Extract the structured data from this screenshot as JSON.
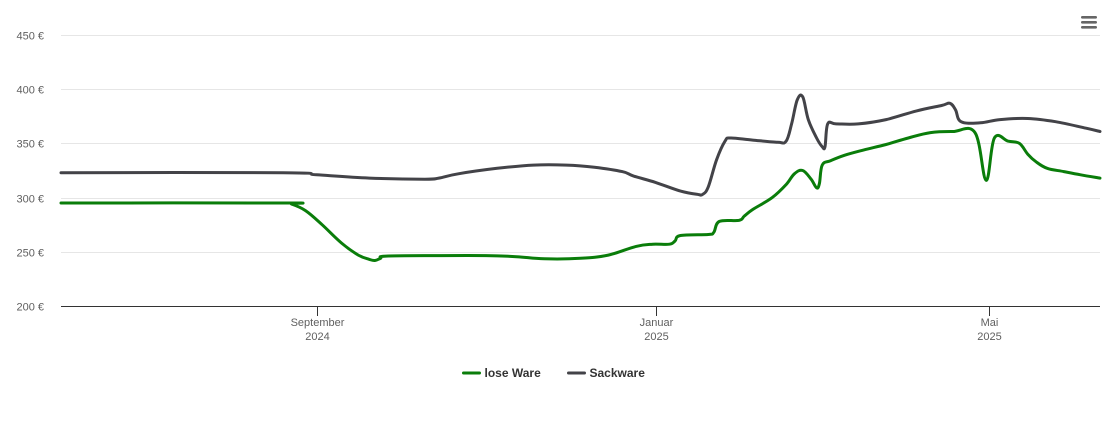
{
  "menu": {
    "icon": "hamburger-menu-icon"
  },
  "chart_data": {
    "type": "line",
    "title": "",
    "xlabel": "",
    "ylabel": "",
    "ylim": [
      200,
      450
    ],
    "yticks": [
      200,
      250,
      300,
      350,
      400,
      450
    ],
    "ytick_labels": [
      "200 €",
      "250 €",
      "300 €",
      "350 €",
      "400 €",
      "450 €"
    ],
    "xlim": [
      "2024-06-01",
      "2025-06-10"
    ],
    "xticks": [
      {
        "date": "2024-09-01",
        "month": "September",
        "year": "2024"
      },
      {
        "date": "2025-01-01",
        "month": "Januar",
        "year": "2025"
      },
      {
        "date": "2025-05-01",
        "month": "Mai",
        "year": "2025"
      }
    ],
    "grid": true,
    "legend": "bottom-center",
    "series": [
      {
        "name": "lose Ware",
        "color": "#0a7d0a",
        "points": [
          [
            "2024-06-01",
            295
          ],
          [
            "2024-08-20",
            295
          ],
          [
            "2024-08-23",
            294
          ],
          [
            "2024-08-28",
            288
          ],
          [
            "2024-09-03",
            275
          ],
          [
            "2024-09-10",
            258
          ],
          [
            "2024-09-16",
            247
          ],
          [
            "2024-09-20",
            243
          ],
          [
            "2024-09-22",
            242
          ],
          [
            "2024-09-24",
            244
          ],
          [
            "2024-09-26",
            246
          ],
          [
            "2024-10-15",
            246.5
          ],
          [
            "2024-11-01",
            246.5
          ],
          [
            "2024-11-12",
            245.5
          ],
          [
            "2024-11-22",
            243.5
          ],
          [
            "2024-12-05",
            244
          ],
          [
            "2024-12-15",
            247
          ],
          [
            "2024-12-25",
            255
          ],
          [
            "2024-12-31",
            257
          ],
          [
            "2025-01-06",
            257
          ],
          [
            "2025-01-08",
            260
          ],
          [
            "2025-01-10",
            265
          ],
          [
            "2025-01-20",
            266
          ],
          [
            "2025-01-22",
            268
          ],
          [
            "2025-01-24",
            278
          ],
          [
            "2025-01-31",
            279
          ],
          [
            "2025-02-02",
            283
          ],
          [
            "2025-02-05",
            289
          ],
          [
            "2025-02-12",
            300
          ],
          [
            "2025-02-17",
            312
          ],
          [
            "2025-02-20",
            322
          ],
          [
            "2025-02-23",
            325
          ],
          [
            "2025-02-26",
            317
          ],
          [
            "2025-02-28",
            309
          ],
          [
            "2025-03-01",
            313
          ],
          [
            "2025-03-02",
            330
          ],
          [
            "2025-03-05",
            334
          ],
          [
            "2025-03-10",
            339
          ],
          [
            "2025-03-17",
            344
          ],
          [
            "2025-03-25",
            349
          ],
          [
            "2025-04-02",
            355
          ],
          [
            "2025-04-10",
            360
          ],
          [
            "2025-04-18",
            361
          ],
          [
            "2025-04-26",
            360
          ],
          [
            "2025-05-03",
            355
          ],
          [
            "2025-05-08",
            352
          ],
          [
            "2025-05-12",
            350
          ],
          [
            "2025-05-15",
            340
          ],
          [
            "2025-05-18",
            333
          ],
          [
            "2025-05-22",
            327
          ],
          [
            "2025-05-28",
            324
          ],
          [
            "2025-06-03",
            321
          ],
          [
            "2025-06-10",
            318
          ],
          [
            "2025-04-30",
            316
          ]
        ]
      },
      {
        "name": "Sackware",
        "color": "#434348",
        "points": [
          [
            "2024-06-01",
            323
          ],
          [
            "2024-08-20",
            323
          ],
          [
            "2024-09-01",
            321
          ],
          [
            "2024-09-20",
            318
          ],
          [
            "2024-10-10",
            317
          ],
          [
            "2024-10-15",
            318
          ],
          [
            "2024-10-22",
            322
          ],
          [
            "2024-11-05",
            327
          ],
          [
            "2024-11-18",
            330
          ],
          [
            "2024-11-30",
            330
          ],
          [
            "2024-12-10",
            328
          ],
          [
            "2024-12-20",
            324
          ],
          [
            "2024-12-24",
            320
          ],
          [
            "2025-01-01",
            314
          ],
          [
            "2025-01-10",
            306
          ],
          [
            "2025-01-16",
            303
          ],
          [
            "2025-01-18",
            303
          ],
          [
            "2025-01-20",
            310
          ],
          [
            "2025-01-23",
            335
          ],
          [
            "2025-01-26",
            352
          ],
          [
            "2025-01-28",
            355
          ],
          [
            "2025-02-05",
            353
          ],
          [
            "2025-02-14",
            351
          ],
          [
            "2025-02-17",
            352
          ],
          [
            "2025-02-19",
            368
          ],
          [
            "2025-02-21",
            390
          ],
          [
            "2025-02-23",
            393
          ],
          [
            "2025-02-25",
            372
          ],
          [
            "2025-02-28",
            355
          ],
          [
            "2025-03-02",
            347
          ],
          [
            "2025-03-03",
            347
          ],
          [
            "2025-03-04",
            368
          ],
          [
            "2025-03-07",
            368
          ],
          [
            "2025-03-15",
            368
          ],
          [
            "2025-03-25",
            372
          ],
          [
            "2025-04-05",
            380
          ],
          [
            "2025-04-14",
            385
          ],
          [
            "2025-04-17",
            387
          ],
          [
            "2025-04-19",
            381
          ],
          [
            "2025-04-21",
            370
          ],
          [
            "2025-04-28",
            369
          ],
          [
            "2025-05-05",
            372
          ],
          [
            "2025-05-15",
            373
          ],
          [
            "2025-05-25",
            370
          ],
          [
            "2025-06-05",
            364
          ],
          [
            "2025-06-10",
            361
          ]
        ]
      }
    ]
  }
}
